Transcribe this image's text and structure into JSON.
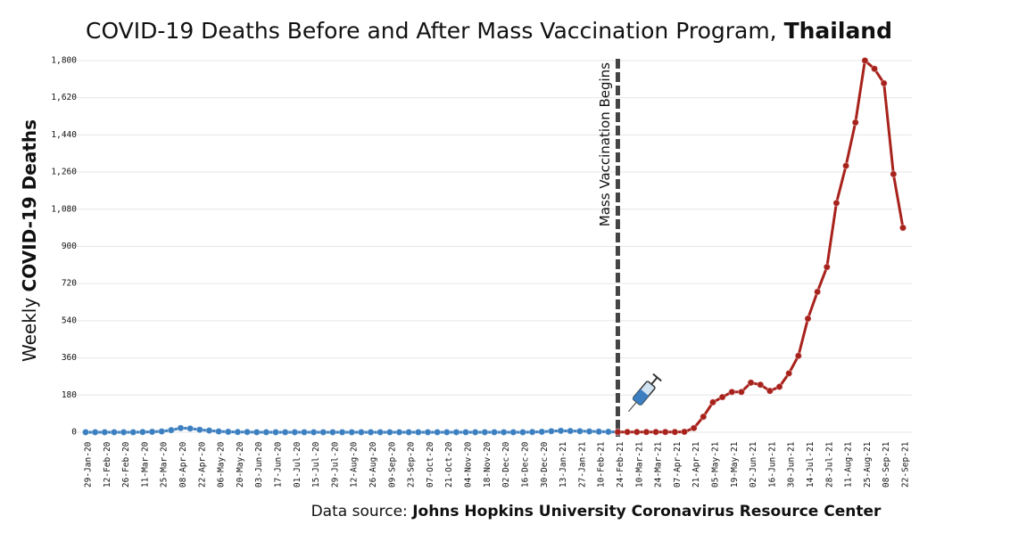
{
  "chart_data": {
    "type": "line",
    "title": [
      "COVID-19 Deaths Before and After Mass Vaccination Program, ",
      "Thailand"
    ],
    "y_label": [
      "Weekly ",
      "COVID-19 Deaths"
    ],
    "source": [
      "Data source: ",
      "Johns Hopkins University Coronavirus Resource Center"
    ],
    "annotations": [
      {
        "text": "Mass Vaccination Begins",
        "x": "24-Feb-21"
      }
    ],
    "categories": [
      "29-Jan-20",
      null,
      "12-Feb-20",
      null,
      "26-Feb-20",
      null,
      "11-Mar-20",
      null,
      "25-Mar-20",
      null,
      "08-Apr-20",
      null,
      "22-Apr-20",
      null,
      "06-May-20",
      null,
      "20-May-20",
      null,
      "03-Jun-20",
      null,
      "17-Jun-20",
      null,
      "01-Jul-20",
      null,
      "15-Jul-20",
      null,
      "29-Jul-20",
      null,
      "12-Aug-20",
      null,
      "26-Aug-20",
      null,
      "09-Sep-20",
      null,
      "23-Sep-20",
      null,
      "07-Oct-20",
      null,
      "21-Oct-20",
      null,
      "04-Nov-20",
      null,
      "18-Nov-20",
      null,
      "02-Dec-20",
      null,
      "16-Dec-20",
      null,
      "30-Dec-20",
      null,
      "13-Jan-21",
      null,
      "27-Jan-21",
      null,
      "10-Feb-21",
      null,
      "24-Feb-21",
      null,
      "10-Mar-21",
      null,
      "24-Mar-21",
      null,
      "07-Apr-21",
      null,
      "21-Apr-21",
      null,
      "05-May-21",
      null,
      "19-May-21",
      null,
      "02-Jun-21",
      null,
      "16-Jun-21",
      null,
      "30-Jun-21",
      null,
      "14-Jul-21",
      null,
      "28-Jul-21",
      null,
      "11-Aug-21",
      null,
      "25-Aug-21",
      null,
      "08-Sep-21",
      null,
      "22-Sep-21"
    ],
    "series": [
      {
        "name": "Before",
        "color": "#3b7fc0",
        "values": [
          0,
          0,
          0,
          0,
          0,
          0,
          1,
          2,
          4,
          10,
          20,
          18,
          12,
          8,
          4,
          2,
          1,
          1,
          0,
          0,
          0,
          0,
          0,
          0,
          0,
          0,
          0,
          0,
          0,
          0,
          0,
          0,
          0,
          0,
          0,
          0,
          0,
          0,
          0,
          0,
          0,
          0,
          0,
          0,
          0,
          0,
          0,
          1,
          2,
          5,
          7,
          6,
          5,
          4,
          3,
          2,
          1,
          null,
          null,
          null,
          null,
          null,
          null,
          null,
          null,
          null,
          null,
          null,
          null,
          null,
          null,
          null,
          null,
          null,
          null,
          null,
          null,
          null,
          null,
          null,
          null,
          null,
          null,
          null,
          null,
          null,
          null
        ]
      },
      {
        "name": "After",
        "color": "#a8221c",
        "values": [
          null,
          null,
          null,
          null,
          null,
          null,
          null,
          null,
          null,
          null,
          null,
          null,
          null,
          null,
          null,
          null,
          null,
          null,
          null,
          null,
          null,
          null,
          null,
          null,
          null,
          null,
          null,
          null,
          null,
          null,
          null,
          null,
          null,
          null,
          null,
          null,
          null,
          null,
          null,
          null,
          null,
          null,
          null,
          null,
          null,
          null,
          null,
          null,
          null,
          null,
          null,
          null,
          null,
          null,
          null,
          null,
          1,
          1,
          1,
          1,
          1,
          1,
          1,
          2,
          20,
          75,
          145,
          170,
          195,
          195,
          240,
          230,
          200,
          220,
          285,
          370,
          550,
          680,
          800,
          1110,
          1290,
          1500,
          1800,
          1760,
          1690,
          1250,
          990
        ]
      }
    ],
    "ylim": [
      -20,
      1830
    ],
    "yticks": [
      0,
      180,
      360,
      540,
      720,
      900,
      {
        "value": 1080,
        "label": "1,080"
      },
      {
        "value": 1260,
        "label": "1,260"
      },
      {
        "value": 1440,
        "label": "1,440"
      },
      {
        "value": 1620,
        "label": "1,620"
      },
      {
        "value": 1800,
        "label": "1,800"
      }
    ],
    "grid": true
  }
}
